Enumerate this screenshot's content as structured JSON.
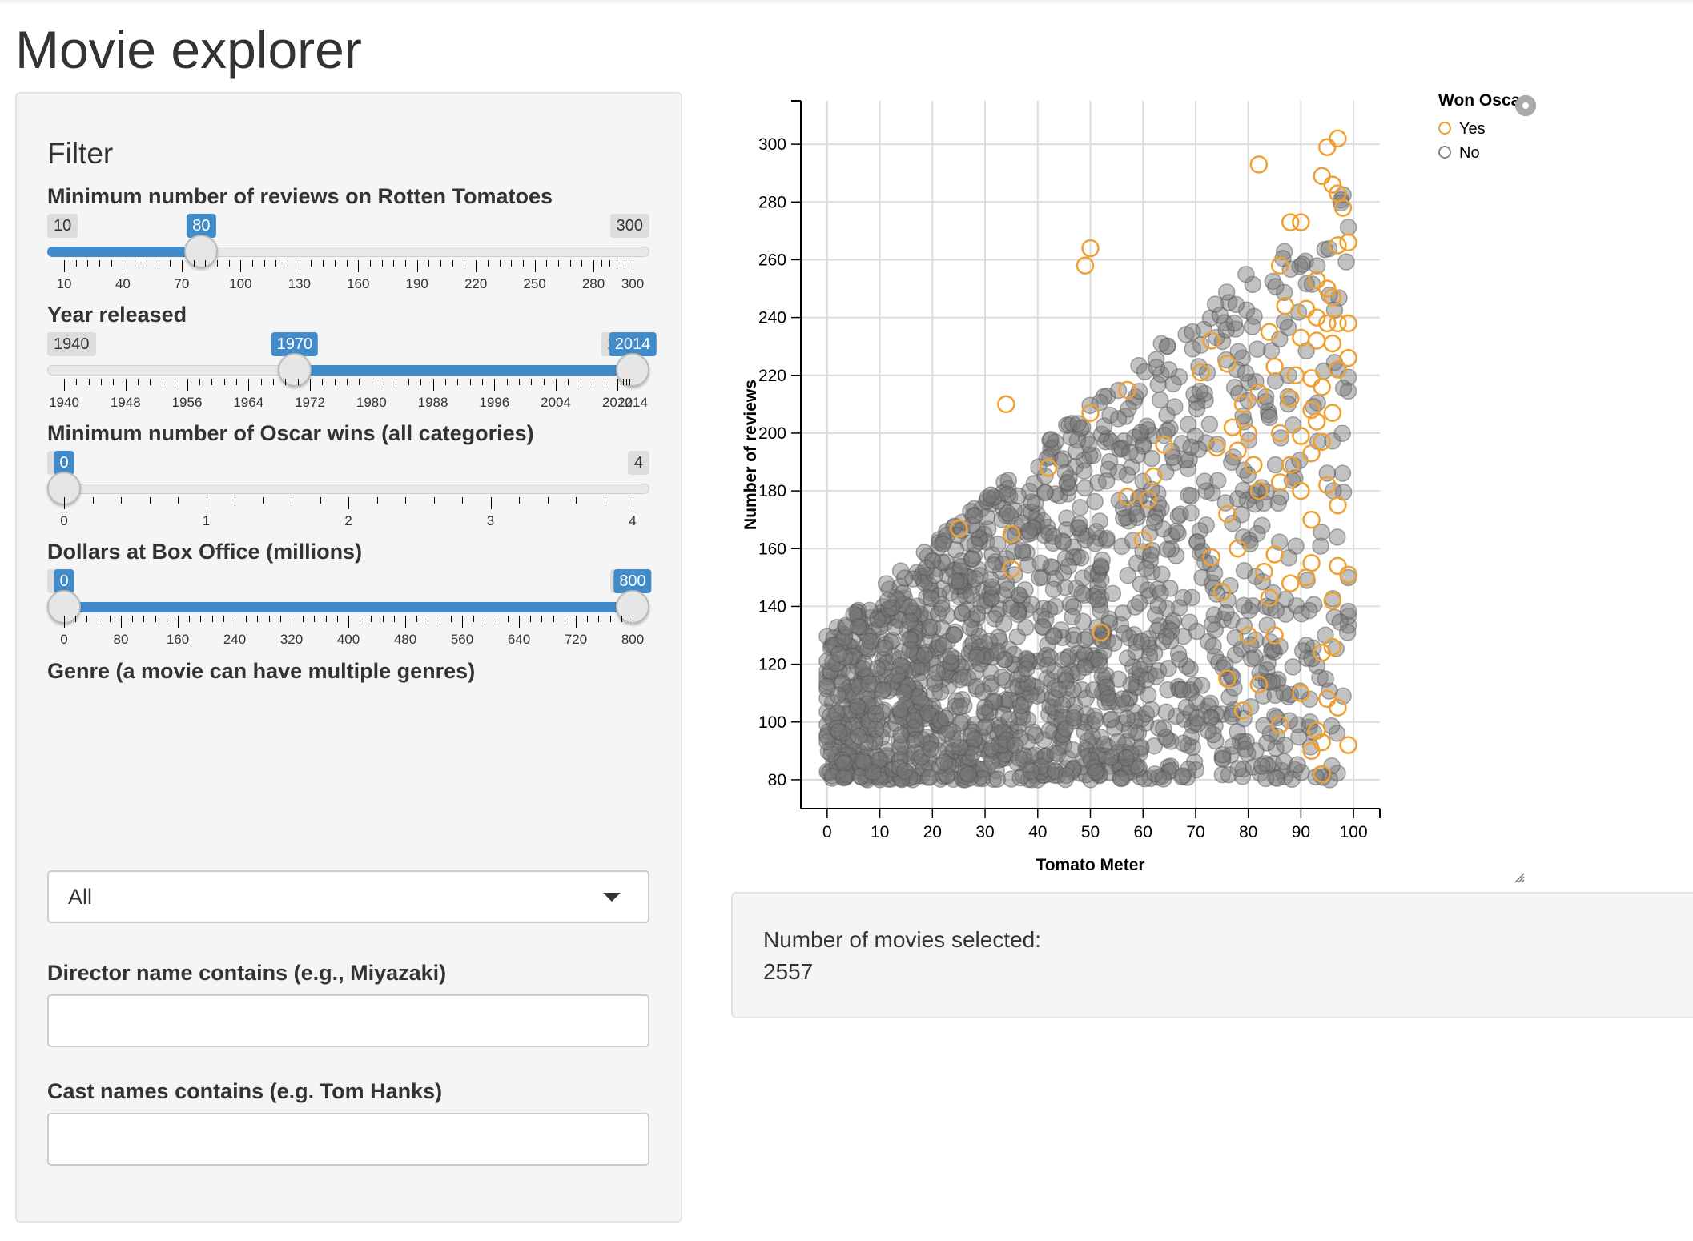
{
  "app": {
    "title": "Movie explorer"
  },
  "sidebar": {
    "heading": "Filter",
    "reviews": {
      "label": "Minimum number of reviews on Rotten Tomatoes",
      "min": 10,
      "max": 300,
      "value": 80,
      "major_ticks": [
        10,
        40,
        70,
        100,
        130,
        160,
        190,
        220,
        250,
        280,
        300
      ]
    },
    "year": {
      "label": "Year released",
      "min": 1940,
      "max": 2014,
      "from": 1970,
      "to": 2014,
      "major_ticks": [
        1940,
        1948,
        1956,
        1964,
        1972,
        1980,
        1988,
        1996,
        2004,
        2012,
        2014
      ]
    },
    "oscars": {
      "label": "Minimum number of Oscar wins (all categories)",
      "min": 0,
      "max": 4,
      "value": 0,
      "major_ticks": [
        0,
        1,
        2,
        3,
        4
      ]
    },
    "boxoffice": {
      "label": "Dollars at Box Office (millions)",
      "min": 0,
      "max": 800,
      "from": 0,
      "to": 800,
      "major_ticks": [
        0,
        80,
        160,
        240,
        320,
        400,
        480,
        560,
        640,
        720,
        800
      ]
    },
    "genre": {
      "label": "Genre (a movie can have multiple genres)",
      "value": "All"
    },
    "director": {
      "label": "Director name contains (e.g., Miyazaki)",
      "value": ""
    },
    "cast": {
      "label": "Cast names contains (e.g. Tom Hanks)",
      "value": ""
    }
  },
  "main": {
    "count_label": "Number of movies selected:",
    "count_value": "2557"
  },
  "colors": {
    "accent": "#428bca",
    "oscar_yes": "#f0a030",
    "oscar_no": "#888888"
  },
  "chart_data": {
    "type": "scatter",
    "xlabel": "Tomato Meter",
    "ylabel": "Number of reviews",
    "xlim": [
      -5,
      105
    ],
    "ylim": [
      70,
      315
    ],
    "x_ticks": [
      0,
      10,
      20,
      30,
      40,
      50,
      60,
      70,
      80,
      90,
      100
    ],
    "y_ticks": [
      80,
      100,
      120,
      140,
      160,
      180,
      200,
      220,
      240,
      260,
      280,
      300
    ],
    "grid": true,
    "legend": {
      "title": "Won Oscar",
      "placement": "top-right",
      "entries": [
        "Yes",
        "No"
      ]
    },
    "series": [
      {
        "name": "Yes",
        "points": [
          [
            97,
            302
          ],
          [
            95,
            299
          ],
          [
            82,
            293
          ],
          [
            94,
            289
          ],
          [
            96,
            286
          ],
          [
            97,
            283
          ],
          [
            98,
            278
          ],
          [
            88,
            273
          ],
          [
            90,
            273
          ],
          [
            99,
            266
          ],
          [
            97,
            265
          ],
          [
            50,
            264
          ],
          [
            49,
            258
          ],
          [
            86,
            258
          ],
          [
            93,
            253
          ],
          [
            95,
            250
          ],
          [
            96,
            247
          ],
          [
            87,
            244
          ],
          [
            91,
            243
          ],
          [
            93,
            240
          ],
          [
            95,
            238
          ],
          [
            97,
            238
          ],
          [
            99,
            238
          ],
          [
            84,
            235
          ],
          [
            90,
            233
          ],
          [
            73,
            232
          ],
          [
            93,
            232
          ],
          [
            96,
            231
          ],
          [
            99,
            226
          ],
          [
            76,
            224
          ],
          [
            85,
            223
          ],
          [
            97,
            222
          ],
          [
            71,
            221
          ],
          [
            89,
            220
          ],
          [
            92,
            219
          ],
          [
            94,
            216
          ],
          [
            57,
            215
          ],
          [
            82,
            214
          ],
          [
            88,
            212
          ],
          [
            34,
            210
          ],
          [
            79,
            210
          ],
          [
            92,
            208
          ],
          [
            50,
            207
          ],
          [
            96,
            207
          ],
          [
            93,
            204
          ],
          [
            77,
            202
          ],
          [
            80,
            200
          ],
          [
            86,
            200
          ],
          [
            90,
            199
          ],
          [
            94,
            197
          ],
          [
            64,
            196
          ],
          [
            74,
            195
          ],
          [
            78,
            194
          ],
          [
            92,
            193
          ],
          [
            81,
            189
          ],
          [
            88,
            189
          ],
          [
            42,
            188
          ],
          [
            62,
            185
          ],
          [
            86,
            183
          ],
          [
            95,
            182
          ],
          [
            82,
            180
          ],
          [
            90,
            180
          ],
          [
            57,
            178
          ],
          [
            61,
            177
          ],
          [
            97,
            175
          ],
          [
            76,
            172
          ],
          [
            92,
            170
          ],
          [
            25,
            167
          ],
          [
            35,
            165
          ],
          [
            60,
            163
          ],
          [
            78,
            160
          ],
          [
            85,
            158
          ],
          [
            73,
            157
          ],
          [
            92,
            155
          ],
          [
            97,
            154
          ],
          [
            35,
            153
          ],
          [
            83,
            152
          ],
          [
            99,
            151
          ],
          [
            91,
            150
          ],
          [
            88,
            148
          ],
          [
            75,
            145
          ],
          [
            84,
            143
          ],
          [
            96,
            142
          ],
          [
            52,
            131
          ],
          [
            80,
            130
          ],
          [
            85,
            130
          ],
          [
            96,
            126
          ],
          [
            94,
            124
          ],
          [
            76,
            115
          ],
          [
            82,
            113
          ],
          [
            90,
            110
          ],
          [
            95,
            108
          ],
          [
            97,
            105
          ],
          [
            79,
            104
          ],
          [
            86,
            99
          ],
          [
            93,
            97
          ],
          [
            94,
            93
          ],
          [
            99,
            92
          ],
          [
            92,
            90
          ],
          [
            94,
            82
          ]
        ]
      }
    ],
    "no_series_count_shown": 2557
  }
}
